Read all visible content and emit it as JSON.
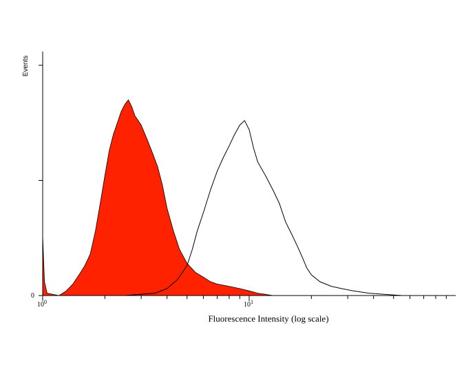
{
  "chart_data": {
    "type": "area",
    "xlabel": "Fluorescence Intensity (log scale)",
    "ylabel": "Events",
    "x_scale": "log",
    "xlim": [
      1,
      100
    ],
    "ylim": [
      0,
      1.0
    ],
    "x_tick_labels": [
      {
        "value": 1,
        "base": "10",
        "exp": "0"
      },
      {
        "value": 10,
        "base": "10",
        "exp": "1"
      }
    ],
    "y_tick_labels": [
      {
        "value": 0,
        "label": "0"
      }
    ],
    "grid": false,
    "series": [
      {
        "style": "filled",
        "color": "#ff2200",
        "points": [
          [
            1.0,
            0.26
          ],
          [
            1.02,
            0.06
          ],
          [
            1.05,
            0.01
          ],
          [
            1.2,
            0.0
          ],
          [
            1.3,
            0.02
          ],
          [
            1.4,
            0.05
          ],
          [
            1.5,
            0.09
          ],
          [
            1.6,
            0.13
          ],
          [
            1.7,
            0.18
          ],
          [
            1.8,
            0.28
          ],
          [
            1.9,
            0.4
          ],
          [
            2.0,
            0.52
          ],
          [
            2.1,
            0.63
          ],
          [
            2.2,
            0.7
          ],
          [
            2.3,
            0.75
          ],
          [
            2.4,
            0.8
          ],
          [
            2.5,
            0.83
          ],
          [
            2.6,
            0.85
          ],
          [
            2.7,
            0.82
          ],
          [
            2.8,
            0.78
          ],
          [
            2.9,
            0.76
          ],
          [
            3.0,
            0.74
          ],
          [
            3.2,
            0.68
          ],
          [
            3.4,
            0.62
          ],
          [
            3.6,
            0.56
          ],
          [
            3.8,
            0.48
          ],
          [
            4.0,
            0.38
          ],
          [
            4.3,
            0.28
          ],
          [
            4.6,
            0.2
          ],
          [
            5.0,
            0.14
          ],
          [
            5.5,
            0.1
          ],
          [
            6.0,
            0.08
          ],
          [
            6.5,
            0.06
          ],
          [
            7.0,
            0.05
          ],
          [
            8.0,
            0.04
          ],
          [
            9.0,
            0.03
          ],
          [
            10.0,
            0.02
          ],
          [
            11.0,
            0.01
          ],
          [
            12.0,
            0.005
          ],
          [
            13.0,
            0.0
          ]
        ]
      },
      {
        "style": "outline",
        "color": "#000000",
        "points": [
          [
            1.5,
            0.0
          ],
          [
            2.5,
            0.0
          ],
          [
            3.5,
            0.01
          ],
          [
            4.0,
            0.03
          ],
          [
            4.5,
            0.07
          ],
          [
            5.0,
            0.13
          ],
          [
            5.3,
            0.2
          ],
          [
            5.6,
            0.28
          ],
          [
            6.0,
            0.36
          ],
          [
            6.5,
            0.46
          ],
          [
            7.0,
            0.54
          ],
          [
            7.5,
            0.6
          ],
          [
            8.0,
            0.65
          ],
          [
            8.5,
            0.7
          ],
          [
            9.0,
            0.74
          ],
          [
            9.5,
            0.76
          ],
          [
            10.0,
            0.72
          ],
          [
            10.5,
            0.64
          ],
          [
            11.0,
            0.58
          ],
          [
            12.0,
            0.52
          ],
          [
            13.0,
            0.46
          ],
          [
            14.0,
            0.4
          ],
          [
            15.0,
            0.32
          ],
          [
            16.0,
            0.27
          ],
          [
            17.0,
            0.22
          ],
          [
            18.0,
            0.17
          ],
          [
            19.0,
            0.12
          ],
          [
            20.0,
            0.09
          ],
          [
            22.0,
            0.06
          ],
          [
            25.0,
            0.04
          ],
          [
            28.0,
            0.03
          ],
          [
            32.0,
            0.02
          ],
          [
            38.0,
            0.01
          ],
          [
            45.0,
            0.005
          ],
          [
            55.0,
            0.0
          ]
        ]
      }
    ]
  }
}
